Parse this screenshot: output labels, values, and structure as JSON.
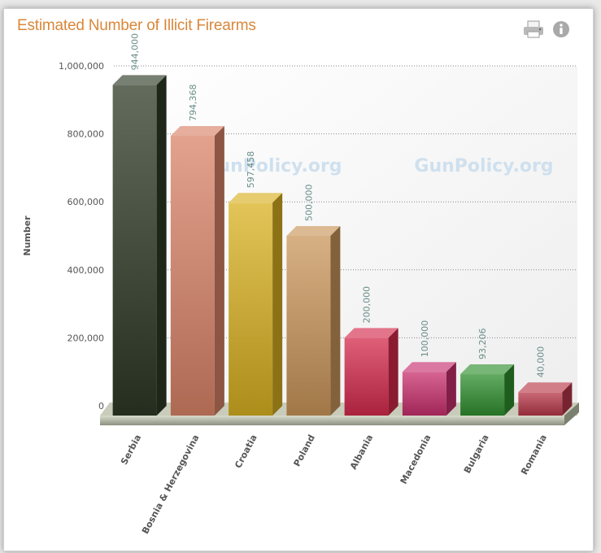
{
  "title": "Estimated Number of Illicit Firearms",
  "toolbar": {
    "print_icon": "printer-icon",
    "info_icon": "info-icon"
  },
  "watermark": "GunPolicy.org",
  "colors": {
    "title": "#d9873a"
  },
  "chart_data": {
    "type": "bar",
    "title": "Estimated Number of Illicit Firearms",
    "xlabel": "",
    "ylabel": "Number",
    "ylim": [
      0,
      1000000
    ],
    "yticks": [
      0,
      200000,
      400000,
      600000,
      800000,
      1000000
    ],
    "ytick_labels": [
      "0",
      "200,000",
      "400,000",
      "600,000",
      "800,000",
      "1,000,000"
    ],
    "grid": true,
    "legend": "none",
    "categories": [
      "Serbia",
      "Bosnia & Herzegovina",
      "Croatia",
      "Poland",
      "Albania",
      "Macedonia",
      "Bulgaria",
      "Romania"
    ],
    "values": [
      944000,
      794368,
      597458,
      500000,
      200000,
      100000,
      93206,
      40000
    ],
    "value_labels": [
      "944,000",
      "794,368",
      "597,458",
      "500,000",
      "200,000",
      "100,000",
      "93,206",
      "40,000"
    ],
    "bar_colors": [
      "#2e3a26",
      "#d98368",
      "#d8b020",
      "#c9955a",
      "#d42a4c",
      "#c8306e",
      "#2f8f2f",
      "#b8384a"
    ]
  }
}
